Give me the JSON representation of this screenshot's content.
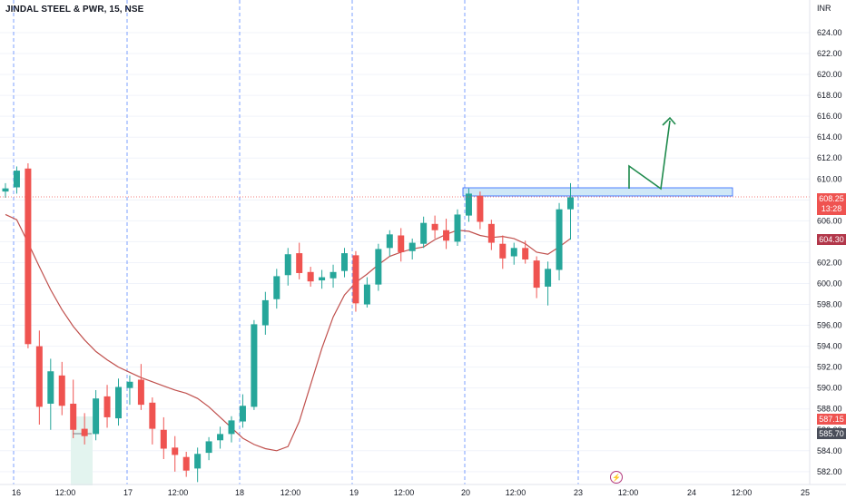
{
  "header": {
    "title": "JINDAL STEEL & PWR, 15, NSE"
  },
  "price_axis": {
    "currency": "INR",
    "ticks": [
      "624.00",
      "622.00",
      "620.00",
      "618.00",
      "616.00",
      "614.00",
      "612.00",
      "610.00",
      "608.00",
      "606.00",
      "604.00",
      "602.00",
      "600.00",
      "598.00",
      "596.00",
      "594.00",
      "592.00",
      "590.00",
      "588.00",
      "586.00",
      "584.00",
      "582.00"
    ]
  },
  "time_axis": {
    "labels": [
      "16",
      "12:00",
      "17",
      "12:00",
      "18",
      "12:00",
      "19",
      "12:00",
      "20",
      "12:00",
      "23",
      "12:00",
      "24",
      "12:00",
      "25"
    ]
  },
  "badges": {
    "last_price": "608.25",
    "countdown": "13:28",
    "ma_value": "604.30",
    "level_red": "587.15",
    "level_gray": "585.70"
  },
  "colors": {
    "up": "#26a69a",
    "down": "#ef5350",
    "ma": "#c0504d",
    "session_line": "#2962ff",
    "zone_fill": "#cfe8f7",
    "zone_stroke": "#2962ff",
    "drawing": "#1e8a4c",
    "last_price": "#ef5350",
    "background": "#ffffff"
  },
  "icons": {
    "replay": "lightning-icon"
  },
  "chart_data": {
    "type": "candlestick",
    "ylim": [
      581,
      626
    ],
    "moving_average": [
      606.6,
      606.1,
      603.9,
      601.6,
      599.4,
      597.5,
      595.9,
      594.6,
      593.5,
      592.7,
      592.0,
      591.5,
      591.0,
      590.6,
      590.2,
      589.8,
      589.5,
      589.0,
      588.2,
      587.2,
      586.2,
      585.2,
      584.6,
      584.2,
      584.0,
      584.4,
      586.8,
      590.3,
      593.8,
      596.8,
      598.9,
      600.1,
      600.9,
      601.8,
      602.6,
      603.0,
      603.3,
      603.5,
      604.2,
      604.7,
      605.1,
      605.0,
      604.6,
      604.4,
      604.5,
      604.3,
      603.8,
      603.0,
      602.8,
      603.5,
      604.3
    ],
    "candles": [
      [
        608.8,
        609.6,
        608.2,
        609.1
      ],
      [
        609.2,
        611.2,
        608.6,
        610.8
      ],
      [
        611.0,
        611.5,
        593.8,
        594.2
      ],
      [
        594.0,
        595.5,
        586.5,
        588.2
      ],
      [
        588.5,
        592.8,
        586.0,
        591.6
      ],
      [
        591.2,
        592.5,
        587.4,
        588.3
      ],
      [
        588.5,
        590.8,
        585.2,
        586.0
      ],
      [
        586.1,
        587.6,
        584.6,
        585.4
      ],
      [
        585.6,
        589.8,
        585.0,
        589.0
      ],
      [
        589.2,
        590.3,
        586.2,
        587.2
      ],
      [
        587.1,
        590.9,
        586.4,
        590.1
      ],
      [
        590.0,
        591.2,
        588.4,
        590.6
      ],
      [
        590.8,
        592.3,
        587.9,
        588.4
      ],
      [
        588.6,
        589.1,
        584.6,
        586.1
      ],
      [
        586.0,
        587.2,
        583.2,
        584.2
      ],
      [
        584.3,
        585.4,
        582.0,
        583.6
      ],
      [
        583.4,
        583.9,
        581.5,
        582.1
      ],
      [
        582.3,
        584.3,
        581.0,
        583.7
      ],
      [
        583.8,
        585.3,
        583.1,
        584.9
      ],
      [
        585.0,
        586.3,
        584.2,
        585.6
      ],
      [
        585.6,
        587.3,
        584.8,
        586.9
      ],
      [
        586.8,
        589.4,
        586.2,
        588.3
      ],
      [
        588.2,
        596.5,
        587.9,
        596.1
      ],
      [
        596.0,
        599.2,
        595.1,
        598.4
      ],
      [
        598.5,
        601.4,
        597.6,
        600.7
      ],
      [
        600.8,
        603.4,
        599.8,
        602.8
      ],
      [
        602.9,
        603.9,
        600.4,
        601.0
      ],
      [
        601.1,
        601.6,
        599.7,
        600.2
      ],
      [
        600.3,
        601.3,
        599.5,
        600.6
      ],
      [
        600.5,
        601.8,
        599.6,
        601.1
      ],
      [
        601.2,
        603.4,
        600.6,
        602.9
      ],
      [
        602.7,
        603.1,
        597.3,
        598.1
      ],
      [
        598.0,
        600.6,
        597.7,
        599.9
      ],
      [
        599.9,
        603.8,
        599.3,
        603.3
      ],
      [
        603.4,
        605.1,
        602.6,
        604.7
      ],
      [
        604.6,
        605.3,
        602.1,
        603.0
      ],
      [
        603.1,
        604.3,
        602.3,
        603.9
      ],
      [
        603.8,
        606.4,
        603.4,
        605.8
      ],
      [
        605.7,
        606.5,
        604.3,
        605.1
      ],
      [
        605.1,
        606.2,
        603.3,
        604.1
      ],
      [
        604.0,
        607.1,
        603.6,
        606.6
      ],
      [
        606.5,
        609.1,
        605.9,
        608.6
      ],
      [
        608.4,
        608.8,
        605.2,
        605.9
      ],
      [
        605.7,
        606.1,
        603.2,
        603.9
      ],
      [
        603.8,
        604.6,
        601.4,
        602.4
      ],
      [
        602.6,
        603.9,
        601.8,
        603.4
      ],
      [
        603.4,
        604.1,
        601.9,
        602.3
      ],
      [
        602.2,
        602.6,
        598.6,
        599.6
      ],
      [
        599.7,
        602.1,
        597.9,
        601.4
      ],
      [
        601.3,
        607.7,
        600.3,
        607.1
      ],
      [
        607.1,
        609.6,
        604.2,
        608.25
      ]
    ]
  }
}
